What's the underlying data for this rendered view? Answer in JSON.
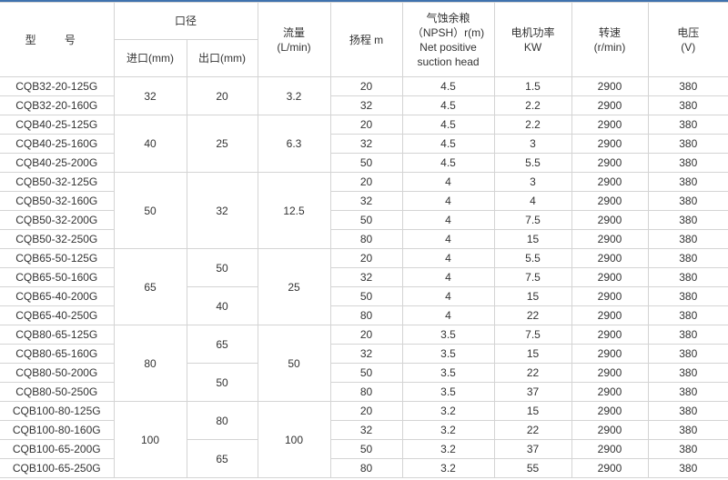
{
  "header": {
    "model": "型 号",
    "caliber": "口径",
    "inlet": "进口(mm)",
    "outlet": "出口(mm)",
    "flow": [
      "流量",
      "(L/min)"
    ],
    "head": "扬程 m",
    "npsh": [
      "气蚀余粮",
      "（NPSH）r(m)",
      "Net positive",
      "suction head"
    ],
    "power": [
      "电机功率",
      "KW"
    ],
    "speed": [
      "转速",
      "(r/min)"
    ],
    "voltage": [
      "电压",
      "(V)"
    ]
  },
  "inlet_groups": [
    {
      "value": "32",
      "rows": 2
    },
    {
      "value": "40",
      "rows": 3
    },
    {
      "value": "50",
      "rows": 4
    },
    {
      "value": "65",
      "rows": 4
    },
    {
      "value": "80",
      "rows": 4
    },
    {
      "value": "100",
      "rows": 4
    }
  ],
  "outlet_groups": [
    {
      "value": "20",
      "rows": 2
    },
    {
      "value": "25",
      "rows": 3
    },
    {
      "value": "32",
      "rows": 4
    },
    {
      "value": "50",
      "rows": 2
    },
    {
      "value": "40",
      "rows": 2
    },
    {
      "value": "65",
      "rows": 2
    },
    {
      "value": "50",
      "rows": 2
    },
    {
      "value": "80",
      "rows": 2
    },
    {
      "value": "65",
      "rows": 2
    }
  ],
  "flow_groups": [
    {
      "value": "3.2",
      "rows": 2
    },
    {
      "value": "6.3",
      "rows": 3
    },
    {
      "value": "12.5",
      "rows": 4
    },
    {
      "value": "25",
      "rows": 4
    },
    {
      "value": "50",
      "rows": 4
    },
    {
      "value": "100",
      "rows": 4
    }
  ],
  "rows": [
    {
      "model": "CQB32-20-125G",
      "head": "20",
      "npsh": "4.5",
      "power": "1.5",
      "speed": "2900",
      "voltage": "380"
    },
    {
      "model": "CQB32-20-160G",
      "head": "32",
      "npsh": "4.5",
      "power": "2.2",
      "speed": "2900",
      "voltage": "380"
    },
    {
      "model": "CQB40-25-125G",
      "head": "20",
      "npsh": "4.5",
      "power": "2.2",
      "speed": "2900",
      "voltage": "380"
    },
    {
      "model": "CQB40-25-160G",
      "head": "32",
      "npsh": "4.5",
      "power": "3",
      "speed": "2900",
      "voltage": "380"
    },
    {
      "model": "CQB40-25-200G",
      "head": "50",
      "npsh": "4.5",
      "power": "5.5",
      "speed": "2900",
      "voltage": "380"
    },
    {
      "model": "CQB50-32-125G",
      "head": "20",
      "npsh": "4",
      "power": "3",
      "speed": "2900",
      "voltage": "380"
    },
    {
      "model": "CQB50-32-160G",
      "head": "32",
      "npsh": "4",
      "power": "4",
      "speed": "2900",
      "voltage": "380"
    },
    {
      "model": "CQB50-32-200G",
      "head": "50",
      "npsh": "4",
      "power": "7.5",
      "speed": "2900",
      "voltage": "380"
    },
    {
      "model": "CQB50-32-250G",
      "head": "80",
      "npsh": "4",
      "power": "15",
      "speed": "2900",
      "voltage": "380"
    },
    {
      "model": "CQB65-50-125G",
      "head": "20",
      "npsh": "4",
      "power": "5.5",
      "speed": "2900",
      "voltage": "380"
    },
    {
      "model": "CQB65-50-160G",
      "head": "32",
      "npsh": "4",
      "power": "7.5",
      "speed": "2900",
      "voltage": "380"
    },
    {
      "model": "CQB65-40-200G",
      "head": "50",
      "npsh": "4",
      "power": "15",
      "speed": "2900",
      "voltage": "380"
    },
    {
      "model": "CQB65-40-250G",
      "head": "80",
      "npsh": "4",
      "power": "22",
      "speed": "2900",
      "voltage": "380"
    },
    {
      "model": "CQB80-65-125G",
      "head": "20",
      "npsh": "3.5",
      "power": "7.5",
      "speed": "2900",
      "voltage": "380"
    },
    {
      "model": "CQB80-65-160G",
      "head": "32",
      "npsh": "3.5",
      "power": "15",
      "speed": "2900",
      "voltage": "380"
    },
    {
      "model": "CQB80-50-200G",
      "head": "50",
      "npsh": "3.5",
      "power": "22",
      "speed": "2900",
      "voltage": "380"
    },
    {
      "model": "CQB80-50-250G",
      "head": "80",
      "npsh": "3.5",
      "power": "37",
      "speed": "2900",
      "voltage": "380"
    },
    {
      "model": "CQB100-80-125G",
      "head": "20",
      "npsh": "3.2",
      "power": "15",
      "speed": "2900",
      "voltage": "380"
    },
    {
      "model": "CQB100-80-160G",
      "head": "32",
      "npsh": "3.2",
      "power": "22",
      "speed": "2900",
      "voltage": "380"
    },
    {
      "model": "CQB100-65-200G",
      "head": "50",
      "npsh": "3.2",
      "power": "37",
      "speed": "2900",
      "voltage": "380"
    },
    {
      "model": "CQB100-65-250G",
      "head": "80",
      "npsh": "3.2",
      "power": "55",
      "speed": "2900",
      "voltage": "380"
    }
  ],
  "colors": {
    "top_border": "#3f72ae",
    "grid": "#d4d4d4",
    "text": "#333333"
  }
}
